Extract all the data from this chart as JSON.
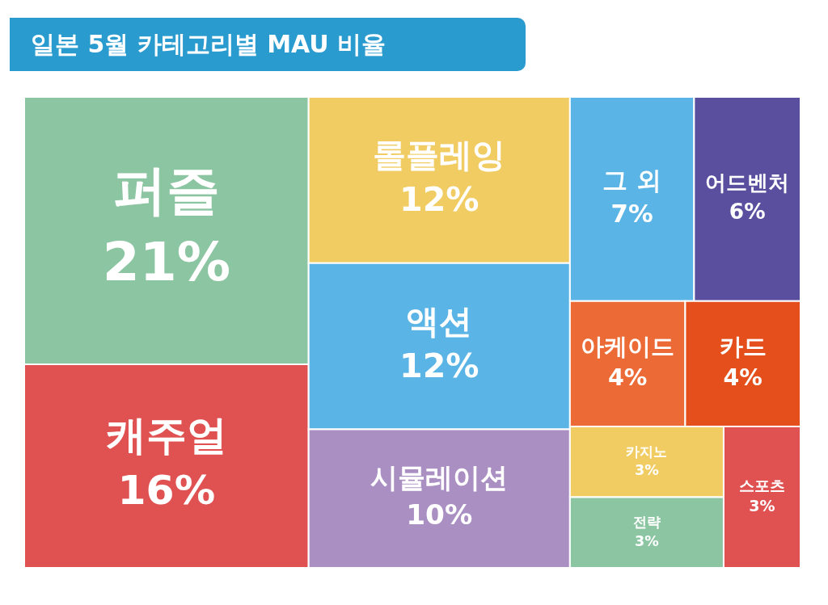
{
  "chart_data": {
    "type": "other",
    "title": "일본 5월 카테고리별 MAU 비율",
    "categories": [
      "퍼즐",
      "캐주얼",
      "롤플레잉",
      "액션",
      "시뮬레이션",
      "그 외",
      "어드벤처",
      "아케이드",
      "카드",
      "카지노",
      "전략",
      "스포츠"
    ],
    "values": [
      21,
      16,
      12,
      12,
      10,
      7,
      6,
      4,
      4,
      3,
      3,
      3
    ],
    "value_labels": [
      "21%",
      "16%",
      "12%",
      "12%",
      "10%",
      "7%",
      "6%",
      "4%",
      "4%",
      "3%",
      "3%",
      "3%"
    ],
    "colors": [
      "#8cc5a2",
      "#e05252",
      "#f0cc62",
      "#5ab4e6",
      "#aa8fc3",
      "#5ab4e6",
      "#5a4f9e",
      "#ec6a35",
      "#e44f1c",
      "#f0cc62",
      "#8cc5a2",
      "#e05252"
    ]
  }
}
